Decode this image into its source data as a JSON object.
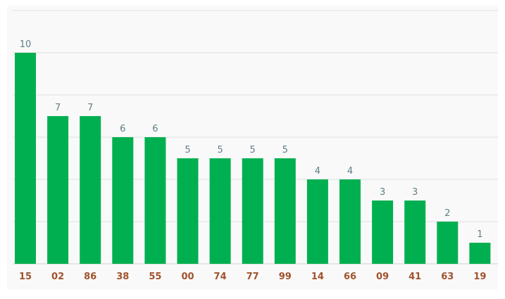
{
  "chart_data": {
    "type": "bar",
    "title": "",
    "xlabel": "",
    "ylabel": "",
    "categories": [
      "15",
      "02",
      "86",
      "38",
      "55",
      "00",
      "74",
      "77",
      "99",
      "14",
      "66",
      "09",
      "41",
      "63",
      "19"
    ],
    "values": [
      10,
      7,
      7,
      6,
      6,
      5,
      5,
      5,
      5,
      4,
      4,
      3,
      3,
      2,
      1
    ],
    "ylim": [
      0,
      12
    ],
    "grid": true,
    "legend": "none",
    "colors": {
      "bar": "#00b050",
      "value_label": "#5d7f87",
      "category_label": "#a0522d",
      "grid": "#dedede",
      "background": "#f9f9f9"
    }
  }
}
